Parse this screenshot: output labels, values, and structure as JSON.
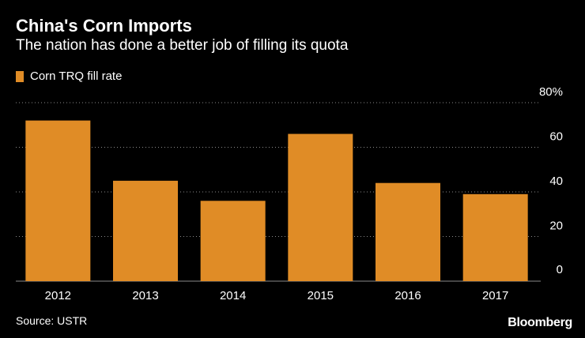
{
  "header": {
    "title": "China's Corn Imports",
    "subtitle": "The nation has done a better job of filling its quota"
  },
  "legend": {
    "label": "Corn TRQ fill rate"
  },
  "footer": {
    "source": "Source: USTR",
    "brand": "Bloomberg"
  },
  "colors": {
    "bar": "#E08C26",
    "grid": "#8a8a8a",
    "background": "#000000",
    "text": "#ffffff"
  },
  "chart_data": {
    "type": "bar",
    "title": "China's Corn Imports",
    "subtitle": "The nation has done a better job of filling its quota",
    "categories": [
      "2012",
      "2013",
      "2014",
      "2015",
      "2016",
      "2017"
    ],
    "series": [
      {
        "name": "Corn TRQ fill rate",
        "values": [
          72,
          45,
          36,
          66,
          44,
          39
        ]
      }
    ],
    "ylim": [
      0,
      80
    ],
    "yticks": [
      0,
      20,
      40,
      60,
      80
    ],
    "ytick_labels": [
      "0",
      "20",
      "40",
      "60",
      "80%"
    ],
    "xlabel": "",
    "ylabel": "",
    "grid": true,
    "legend_position": "top-left"
  }
}
